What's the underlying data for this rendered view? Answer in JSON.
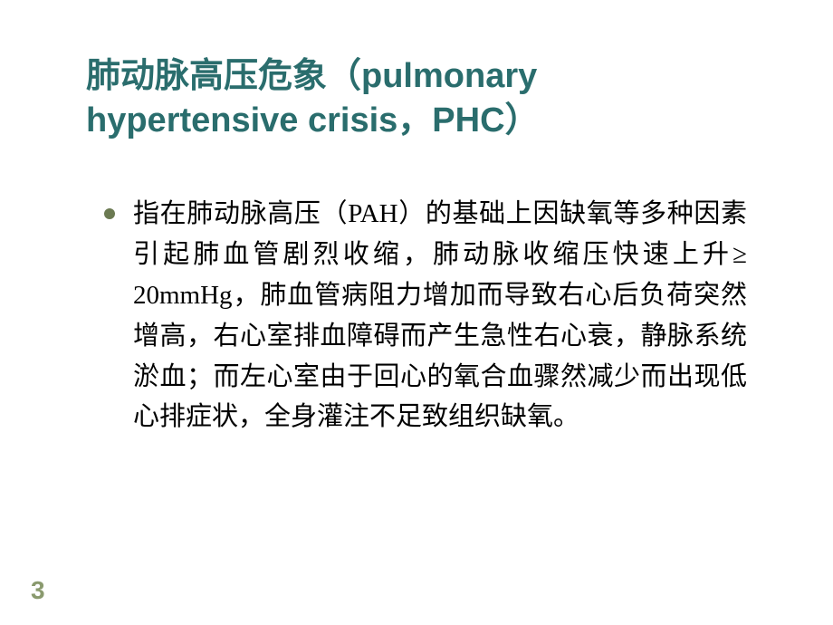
{
  "slide": {
    "title": "肺动脉高压危象（pulmonary hypertensive crisis，PHC）",
    "title_color": "#2a6d6d",
    "title_fontsize": 38,
    "title_fontweight": "bold",
    "bullets": [
      {
        "text": "指在肺动脉高压（PAH）的基础上因缺氧等多种因素引起肺血管剧烈收缩，肺动脉收缩压快速上升≥ 20mmHg，肺血管病阻力增加而导致右心后负荷突然增高，右心室排血障碍而产生急性右心衰，静脉系统淤血；而左心室由于回心的氧合血骤然减少而出现低心排症状，全身灌注不足致组织缺氧。"
      }
    ],
    "body_color": "#000000",
    "body_fontsize": 29,
    "bullet_marker_color": "#6b7a52",
    "background_color": "#ffffff",
    "page_number": "3",
    "page_number_color": "#8a9a6e",
    "page_number_fontsize": 28
  }
}
